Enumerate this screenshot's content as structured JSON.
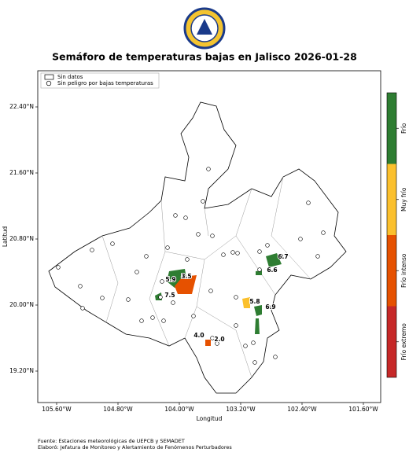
{
  "map": {
    "title": "Semáforo de temperaturas bajas en Jalisco 2026-01-28",
    "xlabel": "Longitud",
    "ylabel": "Latitud",
    "xticks": [
      "105.60°W",
      "104.80°W",
      "104.00°W",
      "103.20°W",
      "102.40°W",
      "101.60°W"
    ],
    "yticks": [
      "22.40°N",
      "21.60°N",
      "20.80°N",
      "20.00°N",
      "19.20°N"
    ],
    "legend": [
      "Sin datos",
      "Sin peligro por bajas temperaturas"
    ],
    "colorbar": [
      {
        "label": "Frío",
        "color": "#2e7d32"
      },
      {
        "label": "Muy frío",
        "color": "#fbc02d"
      },
      {
        "label": "Frío intenso",
        "color": "#e65100"
      },
      {
        "label": "Frío extremo",
        "color": "#c62828"
      }
    ],
    "labels": [
      "5.9",
      "3.5",
      "7.5",
      "6.7",
      "6.6",
      "5.8",
      "6.9",
      "4.0",
      "2.0"
    ]
  },
  "footer": [
    "Fuente: Estaciones meteorológicas de UEPCB y SEMADET",
    "Elaboró: Jefatura de Monitoreo y Alertamiento de Fenómenos Perturbadores"
  ]
}
